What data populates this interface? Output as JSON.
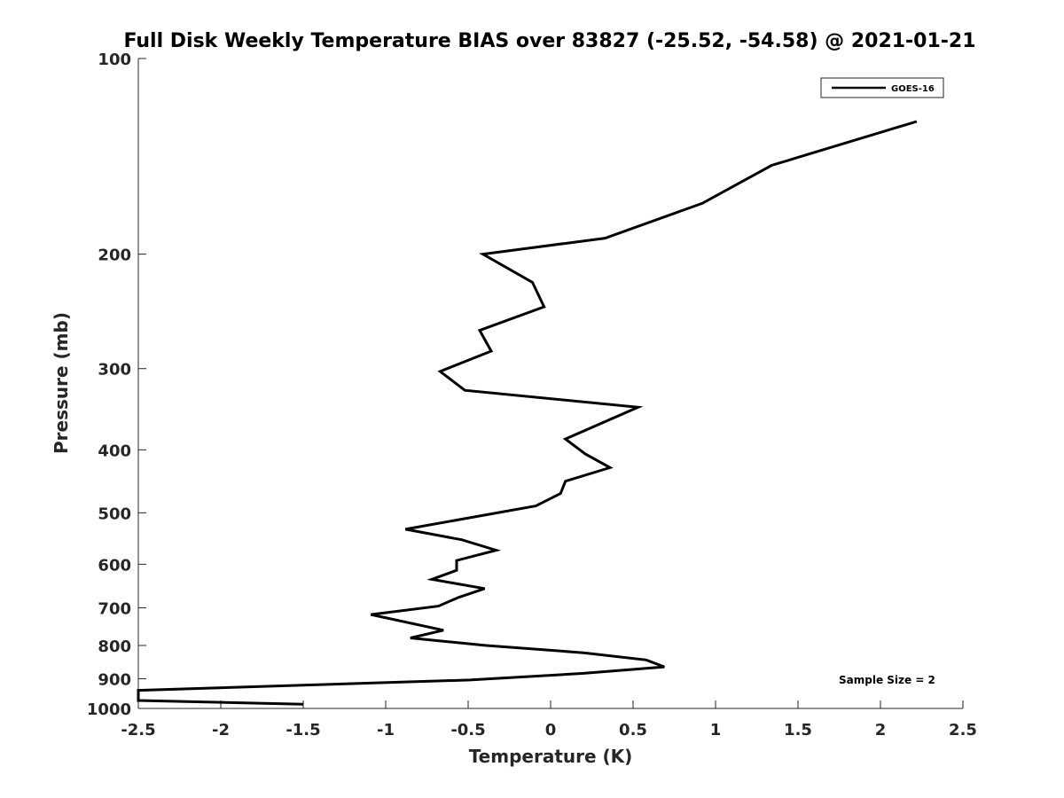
{
  "chart_data": {
    "type": "line",
    "title": "Full Disk Weekly Temperature BIAS over 83827 (-25.52, -54.58) @ 2021-01-21",
    "xlabel": "Temperature (K)",
    "ylabel": "Pressure (mb)",
    "xlim": [
      -2.5,
      2.5
    ],
    "ylim": [
      100,
      1000
    ],
    "y_scale": "log",
    "y_reversed": true,
    "x_ticks": [
      -2.5,
      -2,
      -1.5,
      -1,
      -0.5,
      0,
      0.5,
      1,
      1.5,
      2,
      2.5
    ],
    "x_tick_labels": [
      "-2.5",
      "-2",
      "-1.5",
      "-1",
      "-0.5",
      "0",
      "0.5",
      "1",
      "1.5",
      "2",
      "2.5"
    ],
    "y_ticks": [
      100,
      200,
      300,
      400,
      500,
      600,
      700,
      800,
      900,
      1000
    ],
    "y_tick_labels": [
      "100",
      "200",
      "300",
      "400",
      "500",
      "600",
      "700",
      "800",
      "900",
      "1000"
    ],
    "grid": false,
    "legend_position": "top-right",
    "annotation": "Sample Size = 2",
    "series": [
      {
        "name": "GOES-16",
        "color": "#000000",
        "x": [
          2.22,
          1.34,
          0.92,
          0.33,
          -0.41,
          -0.11,
          -0.04,
          -0.43,
          -0.36,
          -0.67,
          -0.52,
          0.53,
          0.09,
          0.21,
          0.36,
          0.09,
          0.06,
          -0.09,
          -0.88,
          -0.54,
          -0.33,
          -0.57,
          -0.57,
          -0.72,
          -0.4,
          -0.56,
          -0.68,
          -1.09,
          -0.65,
          -0.85,
          -0.39,
          0.2,
          0.58,
          0.69,
          0.2,
          -0.49,
          -2.5,
          -2.5,
          -1.5
        ],
        "y": [
          125,
          146,
          167,
          189,
          200,
          221,
          241,
          262,
          282,
          303,
          324,
          344,
          385,
          406,
          426,
          447,
          467,
          488,
          530,
          550,
          571,
          592,
          613,
          633,
          654,
          675,
          696,
          717,
          758,
          779,
          800,
          821,
          842,
          863,
          883,
          904,
          938,
          972,
          985
        ]
      }
    ]
  }
}
